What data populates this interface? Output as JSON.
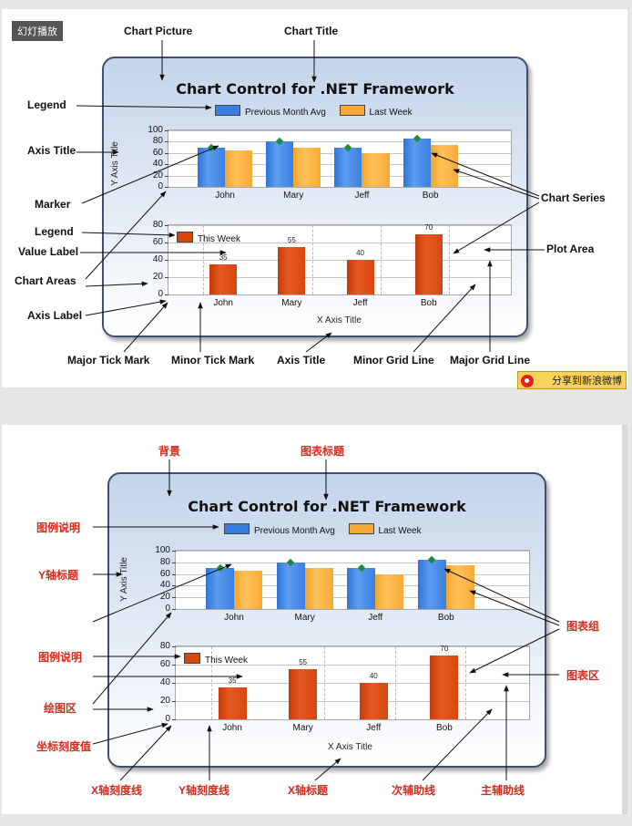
{
  "toolbar": {
    "slideshow_label": "幻灯播放",
    "share_label": "分享到新浪微博"
  },
  "chart": {
    "title": "Chart Control for .NET Framework",
    "y_axis_title": "Y Axis Title",
    "x_axis_title": "X Axis Title",
    "legend_top": [
      {
        "name": "Previous Month Avg",
        "color": "#3a7fe0"
      },
      {
        "name": "Last Week",
        "color": "#f5aa38"
      }
    ],
    "legend_bottom": [
      {
        "name": "This Week",
        "color": "#d8460f"
      }
    ]
  },
  "chart_data": [
    {
      "type": "bar",
      "categories": [
        "John",
        "Mary",
        "Jeff",
        "Bob"
      ],
      "series": [
        {
          "name": "Previous Month Avg",
          "values": [
            70,
            80,
            70,
            85
          ]
        },
        {
          "name": "Last Week",
          "values": [
            65,
            70,
            60,
            75
          ]
        }
      ],
      "ylim": [
        0,
        100
      ],
      "yticks": [
        "0",
        "20",
        "40",
        "60",
        "80",
        "100"
      ],
      "ylabel": "Y Axis Title",
      "markers": [
        70,
        80,
        70,
        85
      ]
    },
    {
      "type": "bar",
      "categories": [
        "John",
        "Mary",
        "Jeff",
        "Bob"
      ],
      "series": [
        {
          "name": "This Week",
          "values": [
            35,
            55,
            40,
            70
          ]
        }
      ],
      "data_labels": [
        "35",
        "55",
        "40",
        "70"
      ],
      "ylim": [
        0,
        80
      ],
      "yticks": [
        "0",
        "20",
        "40",
        "60",
        "80"
      ],
      "xlabel": "X Axis Title"
    }
  ],
  "callouts_en": {
    "chart_picture": "Chart Picture",
    "chart_title": "Chart Title",
    "legend_1": "Legend",
    "axis_title": "Axis Title",
    "marker": "Marker",
    "legend_2": "Legend",
    "value_label": "Value Label",
    "chart_areas": "Chart Areas",
    "axis_label": "Axis Label",
    "chart_series": "Chart Series",
    "plot_area": "Plot Area",
    "major_tick_mark": "Major Tick Mark",
    "minor_tick_mark": "Minor Tick Mark",
    "axis_title_bottom": "Axis Title",
    "minor_grid_line": "Minor Grid Line",
    "major_grid_line": "Major Grid Line"
  },
  "callouts_cn": {
    "background": "背景",
    "chart_title": "图表标题",
    "legend_1": "图例说明",
    "y_axis_title": "Y轴标题",
    "legend_2": "图例说明",
    "plot_zone": "绘图区",
    "axis_value": "坐标刻度值",
    "chart_group": "图表组",
    "chart_area": "图表区",
    "x_tick_line": "X轴刻度线",
    "y_tick_line": "Y轴刻度线",
    "x_axis_title": "X轴标题",
    "minor_grid": "次辅助线",
    "major_grid": "主辅助线"
  }
}
